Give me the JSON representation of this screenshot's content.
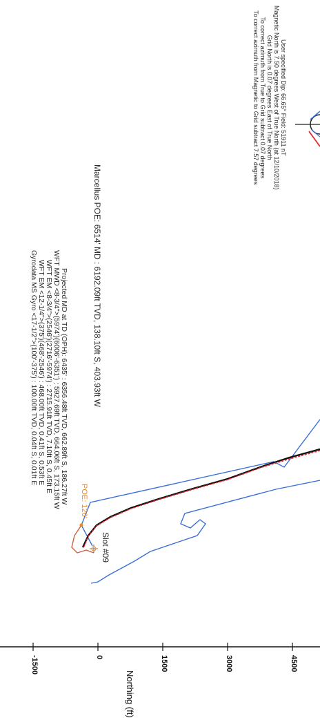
{
  "magnetic_info": [
    "User specified Dip: 66.65°  Field: 51911 nT",
    "Magnetic North is 7.50 degrees West of True North (at 12/10/2018)",
    "Grid North is 0.07 degrees East of True North",
    "To correct azimuth from True to Grid subtract 0.07 degrees",
    "To correct azimuth from Magnetic to Grid subtract 7.57 degrees"
  ],
  "poe_line": "Marcellus POE: 6514' MD : 6192.09ft TVD, 138.10ft S, 403.93ft W",
  "tool_lines": [
    "Projected MD at TD (OPH): 6435' : 6356.48ft TVD, 662.89ft S, 186.27ft W",
    "WFT MWD <8-3/4\">(5974')(6006'-6351') : 5927.69ft TVD, 664.06ft S, 173.15ft W",
    "WFT EM <8-3/4\">(2546')(2716'-5974') : 2715.91ft TVD, 7.10ft S, 0.45ft E",
    "WFT EM <12-1/4\">(375')(468'-2546') : 468.00ft TVD, 0.41ft S, 0.53ft E",
    "Gyrodata MS Gyro <17-1/2\">(100'-375') : 100.00ft TVD, 0.04ft S, 0.01ft E"
  ],
  "poe_label": "POE: 126'",
  "slot_label": "Slot #09",
  "axis": {
    "label": "Northing (ft)",
    "ticks": [
      "-1500",
      "0",
      "1500",
      "3000",
      "4500"
    ]
  },
  "colors": {
    "plan": "#3a6fd8",
    "wellpath": "#e0262d",
    "poe": "#e58a2a",
    "text": "#2a2a2a"
  }
}
